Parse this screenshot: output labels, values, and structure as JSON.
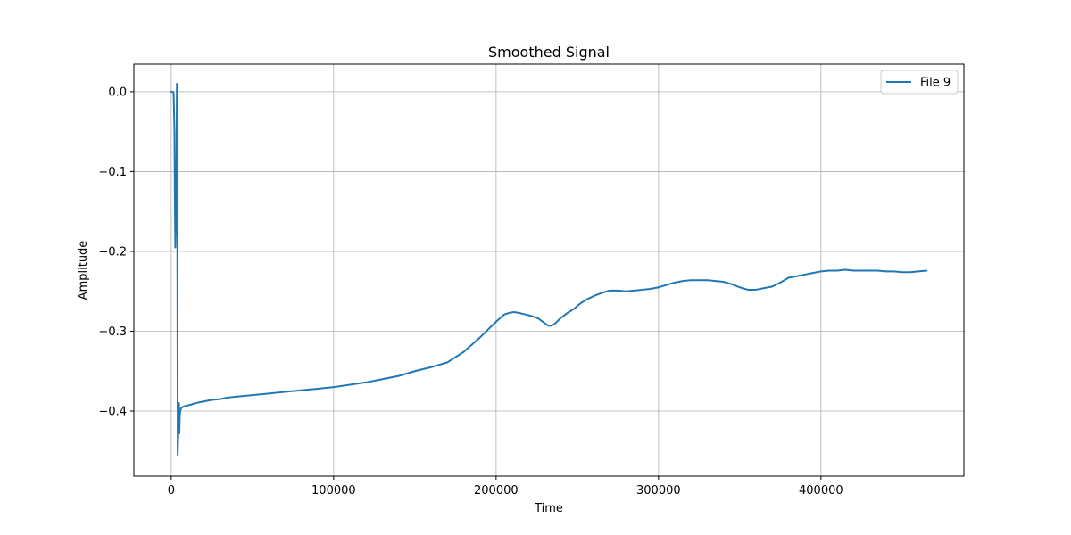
{
  "chart_data": {
    "type": "line",
    "title": "Smoothed Signal",
    "xlabel": "Time",
    "ylabel": "Amplitude",
    "xlim": [
      -23000,
      488000
    ],
    "ylim": [
      -0.4815,
      0.0345
    ],
    "xticks": [
      0,
      100000,
      200000,
      300000,
      400000
    ],
    "xtick_labels": [
      "0",
      "100000",
      "200000",
      "300000",
      "400000"
    ],
    "yticks": [
      0.0,
      -0.1,
      -0.2,
      -0.3,
      -0.4
    ],
    "ytick_labels": [
      "0.0",
      "−0.1",
      "−0.2",
      "−0.3",
      "−0.4"
    ],
    "grid": true,
    "legend_position": "upper right",
    "line_color": "#1f77b4",
    "series": [
      {
        "name": "File 9",
        "x": [
          0,
          1000,
          1500,
          2000,
          2200,
          2500,
          2700,
          3000,
          3200,
          3500,
          3800,
          4000,
          4300,
          4500,
          4800,
          5000,
          5300,
          5600,
          6000,
          7000,
          8000,
          10000,
          12000,
          15000,
          20000,
          25000,
          30000,
          35000,
          40000,
          45000,
          50000,
          55000,
          60000,
          65000,
          70000,
          80000,
          90000,
          100000,
          110000,
          120000,
          130000,
          140000,
          150000,
          160000,
          170000,
          180000,
          190000,
          195000,
          200000,
          205000,
          208000,
          211000,
          214000,
          218000,
          222000,
          226000,
          230000,
          232000,
          234000,
          236000,
          238000,
          240000,
          244000,
          248000,
          252000,
          256000,
          260000,
          265000,
          270000,
          275000,
          280000,
          285000,
          290000,
          295000,
          300000,
          305000,
          310000,
          315000,
          320000,
          325000,
          330000,
          335000,
          340000,
          345000,
          350000,
          355000,
          360000,
          365000,
          370000,
          375000,
          380000,
          385000,
          390000,
          395000,
          400000,
          405000,
          410000,
          415000,
          420000,
          425000,
          430000,
          435000,
          440000,
          445000,
          450000,
          455000,
          460000,
          465000
        ],
        "y": [
          0.0,
          0.0,
          -0.002,
          -0.05,
          -0.12,
          -0.195,
          -0.17,
          -0.18,
          -0.1,
          0.01,
          -0.2,
          -0.455,
          -0.43,
          -0.4,
          -0.39,
          -0.428,
          -0.405,
          -0.4,
          -0.397,
          -0.395,
          -0.394,
          -0.393,
          -0.392,
          -0.39,
          -0.388,
          -0.386,
          -0.385,
          -0.383,
          -0.382,
          -0.381,
          -0.38,
          -0.379,
          -0.378,
          -0.377,
          -0.376,
          -0.374,
          -0.372,
          -0.37,
          -0.367,
          -0.364,
          -0.36,
          -0.356,
          -0.35,
          -0.345,
          -0.339,
          -0.326,
          -0.308,
          -0.298,
          -0.288,
          -0.279,
          -0.277,
          -0.276,
          -0.277,
          -0.279,
          -0.281,
          -0.284,
          -0.29,
          -0.293,
          -0.293,
          -0.291,
          -0.287,
          -0.283,
          -0.277,
          -0.272,
          -0.265,
          -0.26,
          -0.256,
          -0.252,
          -0.249,
          -0.249,
          -0.25,
          -0.249,
          -0.248,
          -0.247,
          -0.245,
          -0.242,
          -0.239,
          -0.237,
          -0.236,
          -0.236,
          -0.236,
          -0.237,
          -0.238,
          -0.241,
          -0.245,
          -0.248,
          -0.248,
          -0.246,
          -0.244,
          -0.239,
          -0.233,
          -0.231,
          -0.229,
          -0.227,
          -0.225,
          -0.224,
          -0.224,
          -0.223,
          -0.224,
          -0.224,
          -0.224,
          -0.224,
          -0.225,
          -0.225,
          -0.226,
          -0.226,
          -0.225,
          -0.224
        ]
      }
    ]
  }
}
